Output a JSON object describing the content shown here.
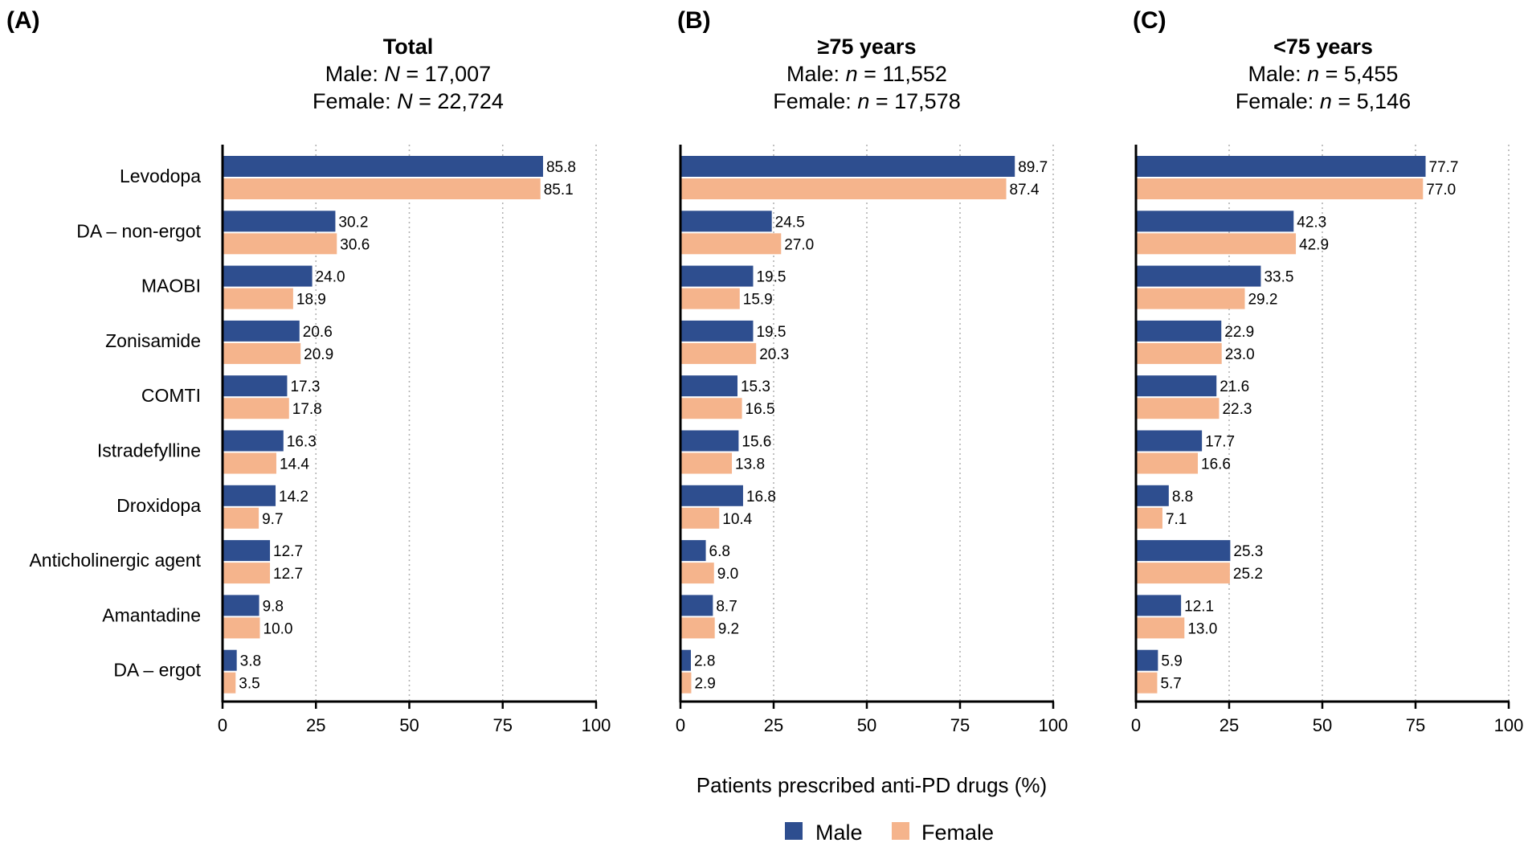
{
  "chart_data": [
    {
      "type": "bar",
      "orientation": "horizontal",
      "panel_label": "(A)",
      "title": "Total",
      "subtitle_lines": [
        {
          "prefix": "Male: ",
          "var": "N",
          "suffix": " = 17,007"
        },
        {
          "prefix": "Female: ",
          "var": "N",
          "suffix": " = 22,724"
        }
      ],
      "categories": [
        "Levodopa",
        "DA – non-ergot",
        "MAOBI",
        "Zonisamide",
        "COMTI",
        "Istradefylline",
        "Droxidopa",
        "Anticholinergic agent",
        "Amantadine",
        "DA – ergot"
      ],
      "series": [
        {
          "name": "Male",
          "values": [
            85.8,
            30.2,
            24.0,
            20.6,
            17.3,
            16.3,
            14.2,
            12.7,
            9.8,
            3.8
          ]
        },
        {
          "name": "Female",
          "values": [
            85.1,
            30.6,
            18.9,
            20.9,
            17.8,
            14.4,
            9.7,
            12.7,
            10.0,
            3.5
          ]
        }
      ],
      "xlim": [
        0,
        100
      ],
      "xticks": [
        0,
        25,
        50,
        75,
        100
      ],
      "grid": "vertical dotted"
    },
    {
      "type": "bar",
      "orientation": "horizontal",
      "panel_label": "(B)",
      "title": "≥75 years",
      "subtitle_lines": [
        {
          "prefix": "Male: ",
          "var": "n",
          "suffix": " = 11,552"
        },
        {
          "prefix": "Female: ",
          "var": "n",
          "suffix": " = 17,578"
        }
      ],
      "categories": [
        "Levodopa",
        "DA – non-ergot",
        "MAOBI",
        "Zonisamide",
        "COMTI",
        "Istradefylline",
        "Droxidopa",
        "Anticholinergic agent",
        "Amantadine",
        "DA – ergot"
      ],
      "series": [
        {
          "name": "Male",
          "values": [
            89.7,
            24.5,
            19.5,
            19.5,
            15.3,
            15.6,
            16.8,
            6.8,
            8.7,
            2.8
          ]
        },
        {
          "name": "Female",
          "values": [
            87.4,
            27.0,
            15.9,
            20.3,
            16.5,
            13.8,
            10.4,
            9.0,
            9.2,
            2.9
          ]
        }
      ],
      "xlim": [
        0,
        100
      ],
      "xticks": [
        0,
        25,
        50,
        75,
        100
      ],
      "grid": "vertical dotted"
    },
    {
      "type": "bar",
      "orientation": "horizontal",
      "panel_label": "(C)",
      "title": "<75 years",
      "subtitle_lines": [
        {
          "prefix": "Male: ",
          "var": "n",
          "suffix": " = 5,455"
        },
        {
          "prefix": "Female: ",
          "var": "n",
          "suffix": " = 5,146"
        }
      ],
      "categories": [
        "Levodopa",
        "DA – non-ergot",
        "MAOBI",
        "Zonisamide",
        "COMTI",
        "Istradefylline",
        "Droxidopa",
        "Anticholinergic agent",
        "Amantadine",
        "DA – ergot"
      ],
      "series": [
        {
          "name": "Male",
          "values": [
            77.7,
            42.3,
            33.5,
            22.9,
            21.6,
            17.7,
            8.8,
            25.3,
            12.1,
            5.9
          ]
        },
        {
          "name": "Female",
          "values": [
            77.0,
            42.9,
            29.2,
            23.0,
            22.3,
            16.6,
            7.1,
            25.2,
            13.0,
            5.7
          ]
        }
      ],
      "xlim": [
        0,
        100
      ],
      "xticks": [
        0,
        25,
        50,
        75,
        100
      ],
      "grid": "vertical dotted"
    }
  ],
  "shared": {
    "xlabel": "Patients prescribed anti-PD drugs (%)",
    "legend": [
      {
        "name": "Male",
        "color": "#2E4E8F"
      },
      {
        "name": "Female",
        "color": "#F5B48C"
      }
    ]
  },
  "colors": {
    "male": "#2E4E8F",
    "female": "#F5B48C",
    "grid": "#b3b3b3",
    "axis": "#000000"
  }
}
